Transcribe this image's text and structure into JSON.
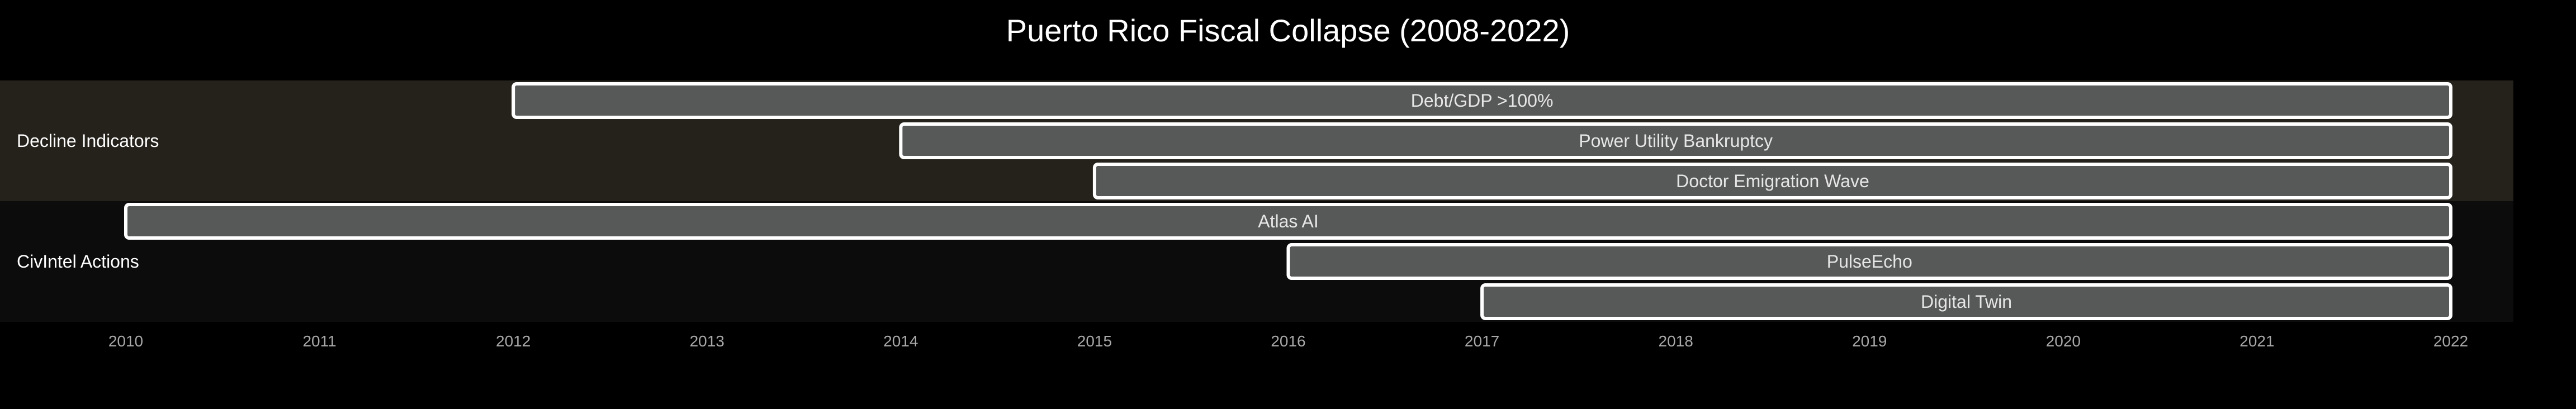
{
  "chart_data": {
    "type": "gantt",
    "title": "Puerto Rico Fiscal Collapse (2008-2022)",
    "x_unit": "year",
    "xlim": [
      2009.35,
      2022.3
    ],
    "x_ticks": [
      "2010",
      "2011",
      "2012",
      "2013",
      "2014",
      "2015",
      "2016",
      "2017",
      "2018",
      "2019",
      "2020",
      "2021",
      "2022"
    ],
    "sections": [
      {
        "name": "Decline Indicators",
        "color": "#25221b",
        "tasks": [
          {
            "label": "Debt/GDP >100%",
            "start": 2012,
            "end": 2022
          },
          {
            "label": "Power Utility Bankruptcy",
            "start": 2014,
            "end": 2022
          },
          {
            "label": "Doctor Emigration Wave",
            "start": 2015,
            "end": 2022
          }
        ]
      },
      {
        "name": "CivIntel Actions",
        "color": "#0c0c0c",
        "tasks": [
          {
            "label": "Atlas AI",
            "start": 2010,
            "end": 2022
          },
          {
            "label": "PulseEcho",
            "start": 2016,
            "end": 2022
          },
          {
            "label": "Digital Twin",
            "start": 2017,
            "end": 2022
          }
        ]
      }
    ],
    "bar_color": "#575958",
    "bar_stroke": "#ffffff",
    "background": "#000000"
  }
}
